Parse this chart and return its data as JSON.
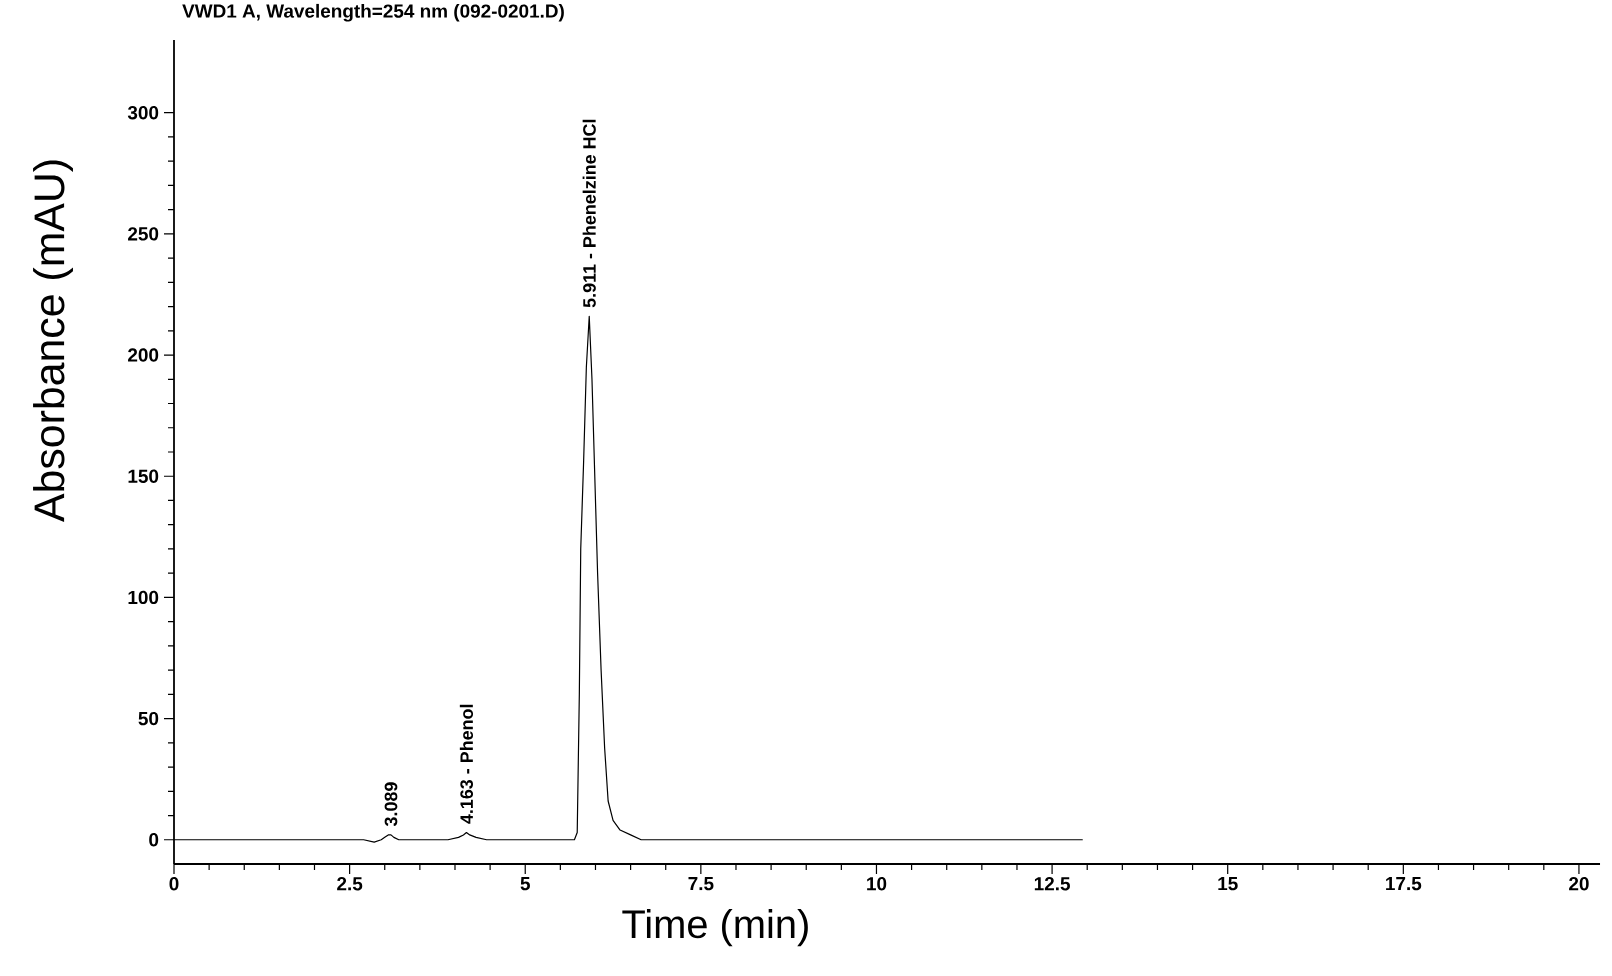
{
  "chart_data": {
    "type": "line",
    "title": "VWD1 A, Wavelength=254 nm (092-0201.D)",
    "xlabel": "Time (min)",
    "ylabel": "Absorbance (mAU)",
    "x": [
      0,
      2.7,
      2.85,
      2.95,
      3.0,
      3.05,
      3.089,
      3.13,
      3.2,
      3.3,
      3.9,
      4.05,
      4.12,
      4.163,
      4.21,
      4.3,
      4.45,
      5.6,
      5.7,
      5.74,
      5.77,
      5.79,
      5.83,
      5.87,
      5.911,
      5.95,
      5.99,
      6.03,
      6.08,
      6.13,
      6.18,
      6.25,
      6.35,
      6.5,
      6.65,
      6.8,
      12.93
    ],
    "values": [
      0,
      0,
      -1,
      0,
      1,
      2,
      2,
      1,
      0,
      0,
      0,
      1,
      2,
      3,
      2,
      1,
      0,
      0,
      0,
      3,
      60,
      120,
      155,
      195,
      216,
      190,
      150,
      110,
      70,
      38,
      16,
      8,
      4,
      2,
      0,
      0,
      0
    ],
    "color": "#000000",
    "line_style": "solid",
    "xlim": [
      0,
      20.3
    ],
    "ylim": [
      -10,
      330
    ],
    "xticks": [
      0,
      2.5,
      5,
      7.5,
      10,
      12.5,
      15,
      17.5,
      20
    ],
    "yticks": [
      0,
      50,
      100,
      150,
      200,
      250,
      300
    ],
    "annotations": [
      {
        "text": "3.089",
        "x": 3.089,
        "y": 2
      },
      {
        "text": "4.163 - Phenol",
        "x": 4.163,
        "y": 3
      },
      {
        "text": "5.911 - Phenelzine HCl",
        "x": 5.911,
        "y": 216
      }
    ]
  }
}
